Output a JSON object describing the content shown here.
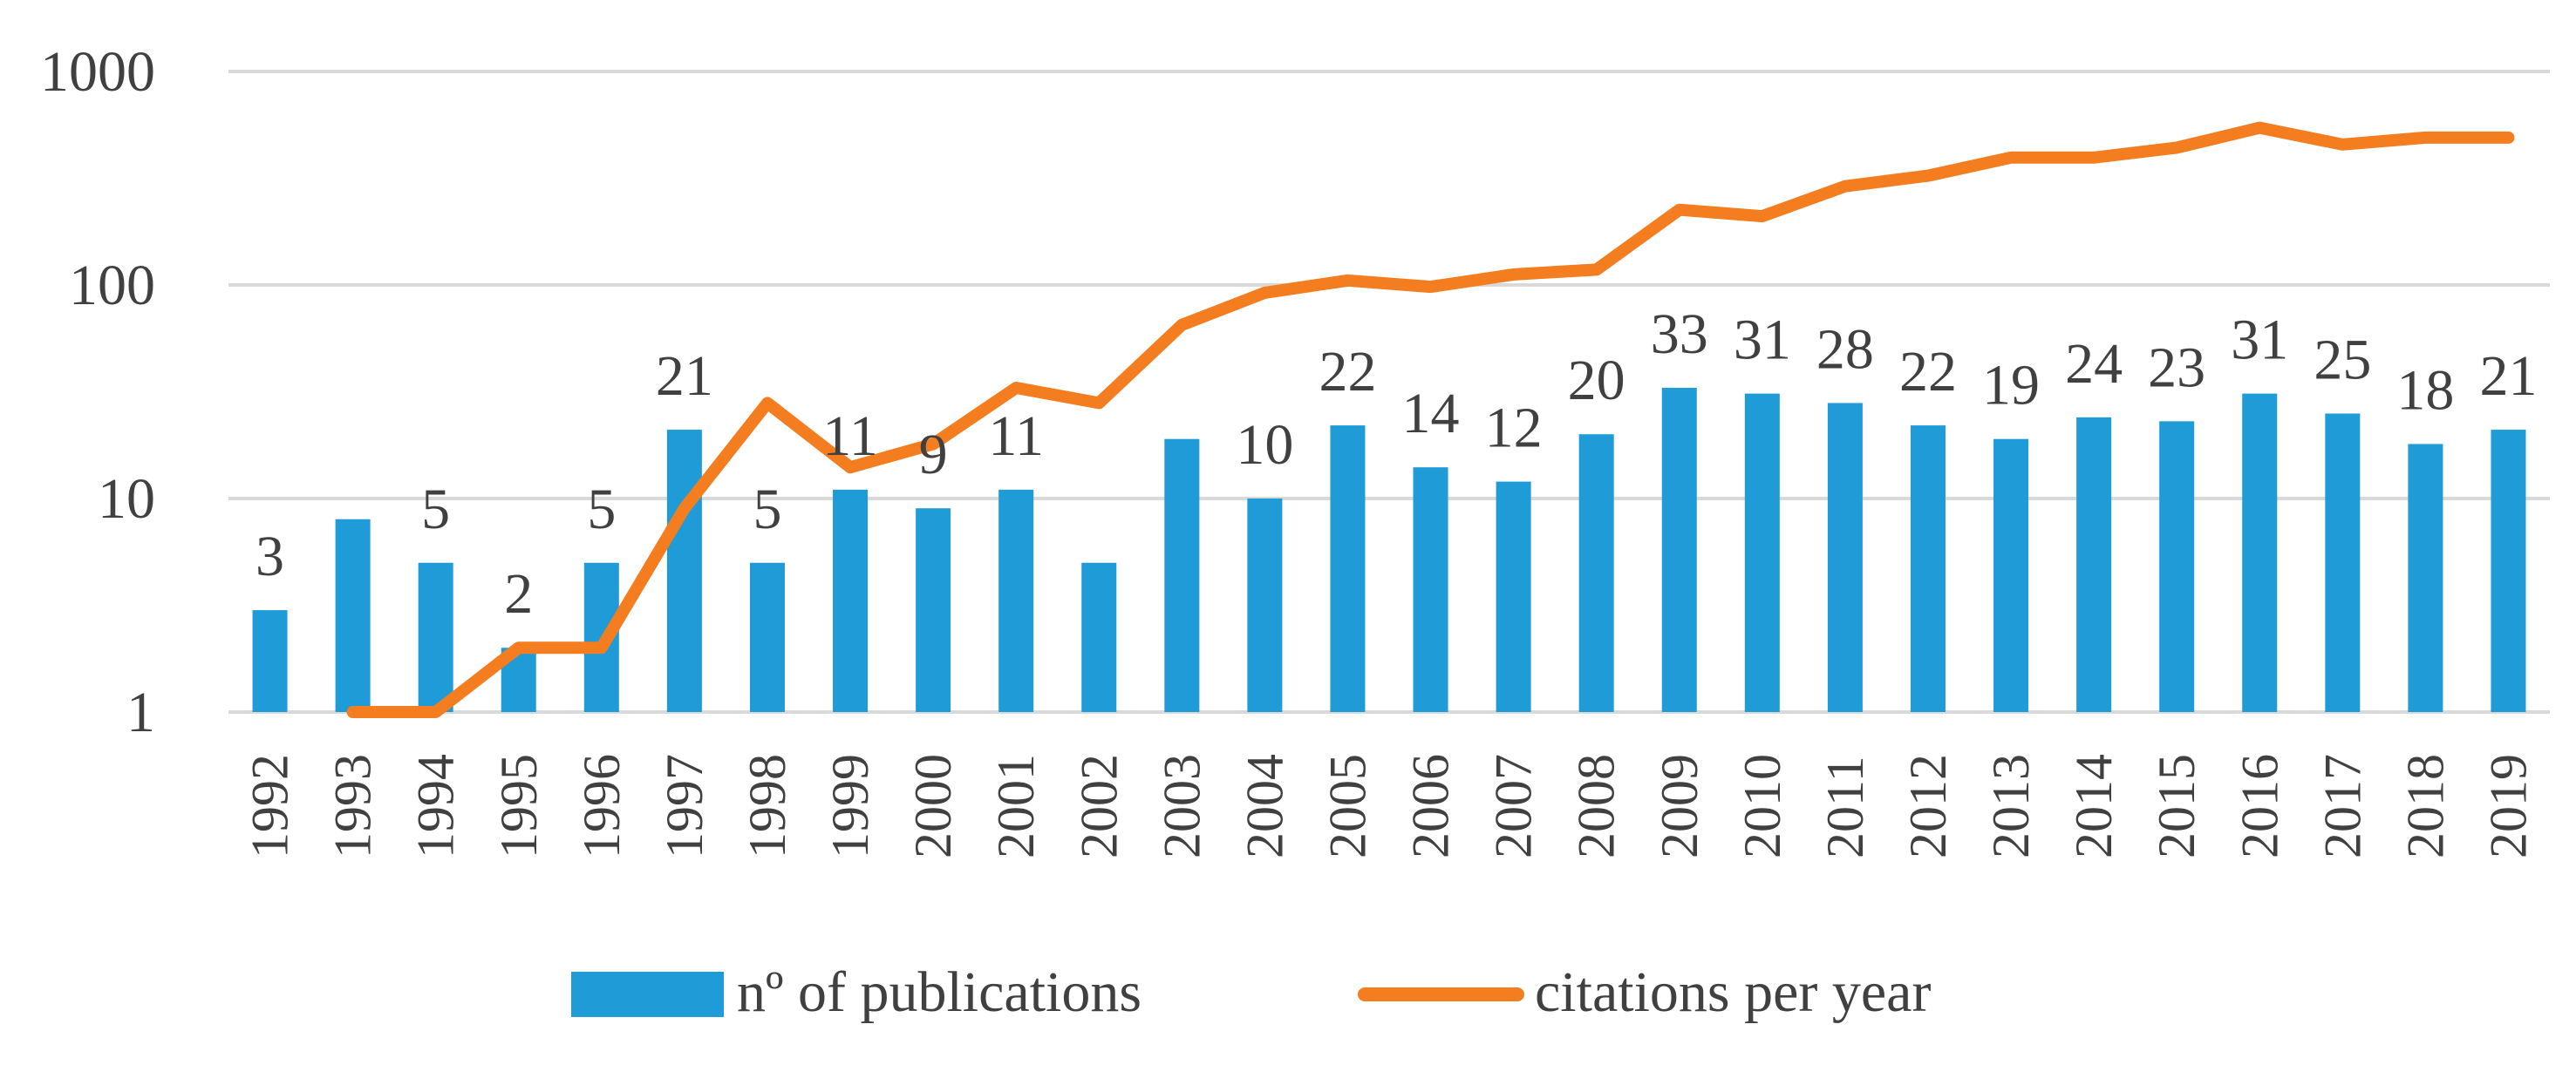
{
  "chart_data": {
    "type": "bar",
    "title": "",
    "xlabel": "",
    "ylabel": "",
    "y_scale": "log",
    "ylim": [
      1,
      1000
    ],
    "y_ticks": [
      "1",
      "10",
      "100",
      "1000"
    ],
    "grid": true,
    "legend_position": "bottom",
    "categories": [
      "1992",
      "1993",
      "1994",
      "1995",
      "1996",
      "1997",
      "1998",
      "1999",
      "2000",
      "2001",
      "2002",
      "2003",
      "2004",
      "2005",
      "2006",
      "2007",
      "2008",
      "2009",
      "2010",
      "2011",
      "2012",
      "2013",
      "2014",
      "2015",
      "2016",
      "2017",
      "2018",
      "2019"
    ],
    "series": [
      {
        "name": "nº of publications",
        "type": "bar",
        "color": "#1f9bd7",
        "values": [
          3,
          8,
          5,
          2,
          5,
          21,
          5,
          11,
          9,
          11,
          5,
          19,
          10,
          22,
          14,
          12,
          20,
          33,
          31,
          28,
          22,
          19,
          24,
          23,
          31,
          25,
          18,
          21
        ],
        "data_labels": [
          "3",
          "",
          "5",
          "2",
          "5",
          "21",
          "5",
          "11",
          "9",
          "11",
          "",
          "",
          "10",
          "22",
          "14",
          "12",
          "20",
          "33",
          "31",
          "28",
          "22",
          "19",
          "24",
          "23",
          "31",
          "25",
          "18",
          "21"
        ]
      },
      {
        "name": "citations per year",
        "type": "line",
        "color": "#f47d20",
        "values": [
          null,
          1,
          1,
          2,
          2,
          9,
          28,
          14,
          18,
          33,
          28,
          65,
          92,
          105,
          98,
          112,
          118,
          225,
          210,
          290,
          325,
          395,
          395,
          440,
          545,
          455,
          490,
          490
        ]
      }
    ]
  }
}
